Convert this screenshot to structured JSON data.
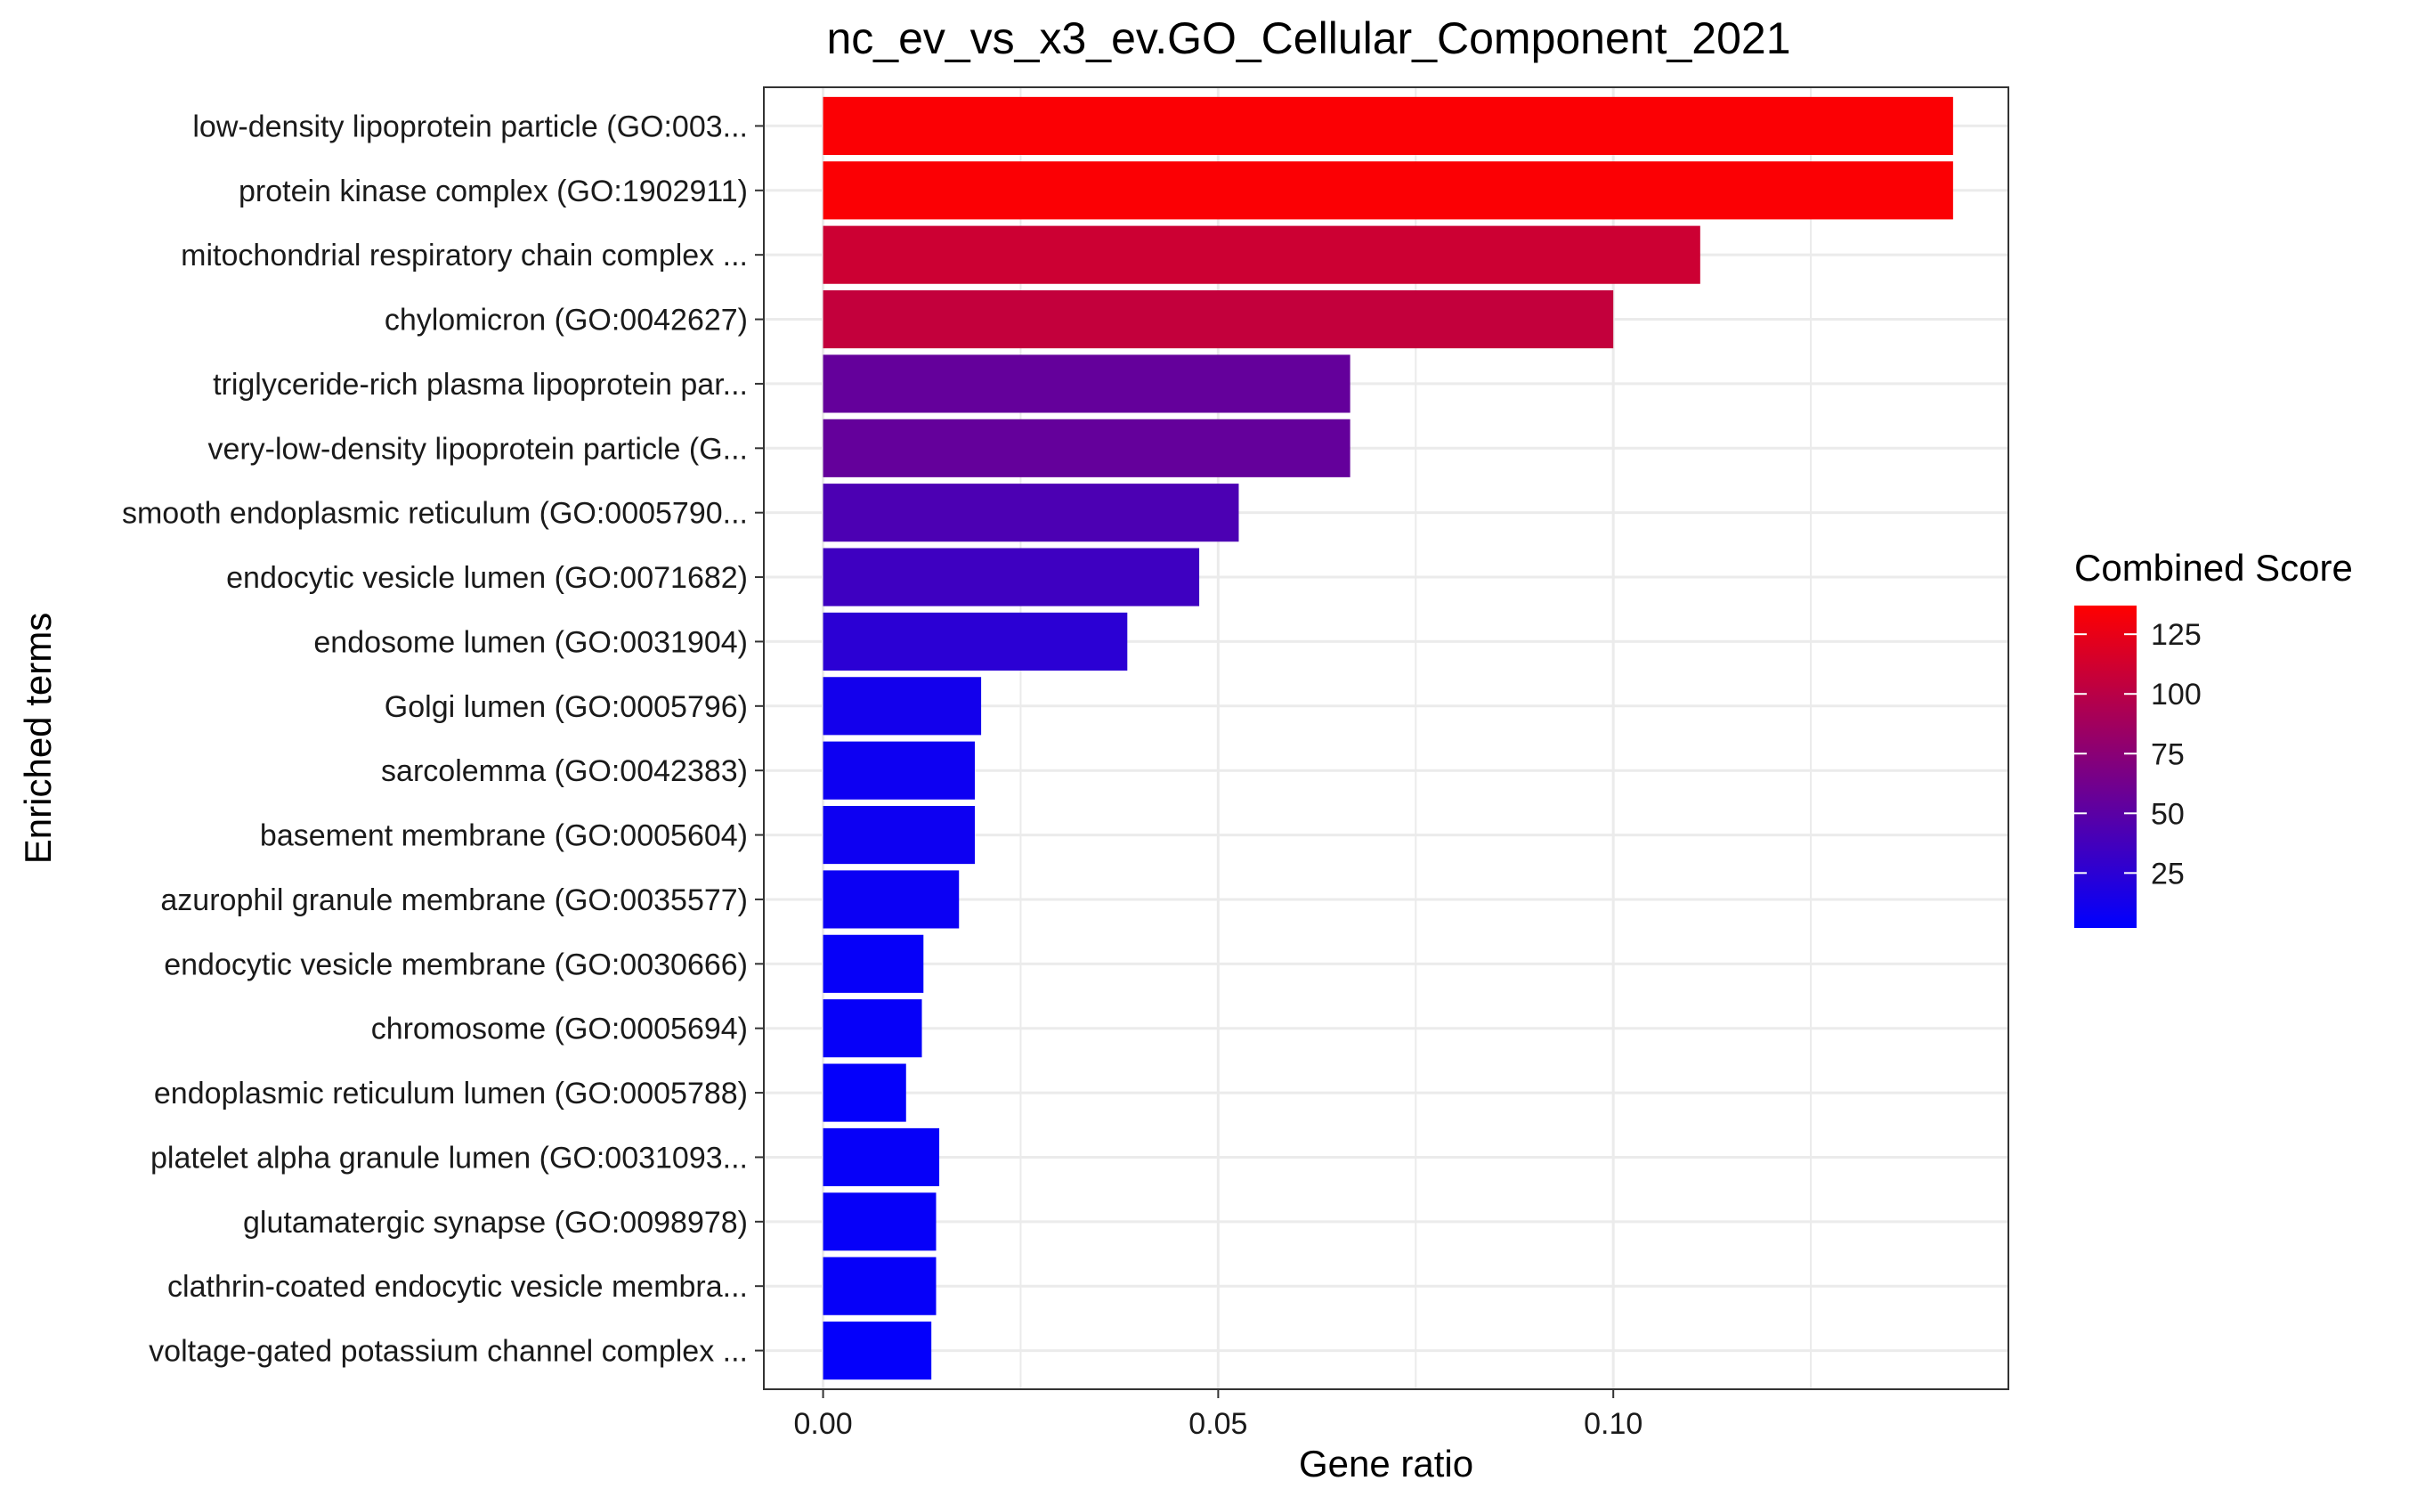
{
  "chart_data": {
    "type": "bar",
    "orientation": "horizontal",
    "title": "nc_ev_vs_x3_ev.GO_Cellular_Component_2021",
    "xlabel": "Gene ratio",
    "ylabel": "Enriched terms",
    "xlim": [
      -0.0075,
      0.15
    ],
    "xticks": [
      {
        "value": 0.0,
        "label": "0.00"
      },
      {
        "value": 0.05,
        "label": "0.05"
      },
      {
        "value": 0.1,
        "label": "0.10"
      }
    ],
    "grid": true,
    "categories": [
      "low-density lipoprotein particle (GO:003...",
      "protein kinase complex (GO:1902911)",
      "mitochondrial respiratory chain complex ...",
      "chylomicron (GO:0042627)",
      "triglyceride-rich plasma lipoprotein par...",
      "very-low-density lipoprotein particle (G...",
      "smooth endoplasmic reticulum (GO:0005790...",
      "endocytic vesicle lumen (GO:0071682)",
      "endosome lumen (GO:0031904)",
      "Golgi lumen (GO:0005796)",
      "sarcolemma (GO:0042383)",
      "basement membrane (GO:0005604)",
      "azurophil granule membrane (GO:0035577)",
      "endocytic vesicle membrane (GO:0030666)",
      "chromosome (GO:0005694)",
      "endoplasmic reticulum lumen (GO:0005788)",
      "platelet alpha granule lumen (GO:0031093...",
      "glutamatergic synapse (GO:0098978)",
      "clathrin-coated endocytic vesicle membra...",
      "voltage-gated potassium channel complex ..."
    ],
    "values": [
      0.143,
      0.143,
      0.111,
      0.1,
      0.0667,
      0.0667,
      0.0526,
      0.0476,
      0.0385,
      0.02,
      0.0192,
      0.0192,
      0.0172,
      0.0127,
      0.0125,
      0.0105,
      0.0147,
      0.0143,
      0.0143,
      0.0137
    ],
    "combined_scores": [
      135,
      135,
      110,
      105,
      55,
      55,
      42,
      35,
      25,
      12,
      9,
      9,
      8,
      5,
      5,
      4,
      5,
      5,
      5,
      4
    ],
    "color_scale": {
      "title": "Combined Score",
      "low_color": "#0000ff",
      "high_color": "#ff0000",
      "domain": [
        2,
        137
      ],
      "ticks": [
        {
          "value": 25,
          "label": "25"
        },
        {
          "value": 50,
          "label": "50"
        },
        {
          "value": 75,
          "label": "75"
        },
        {
          "value": 100,
          "label": "100"
        },
        {
          "value": 125,
          "label": "125"
        }
      ]
    },
    "legend_position": "right"
  }
}
